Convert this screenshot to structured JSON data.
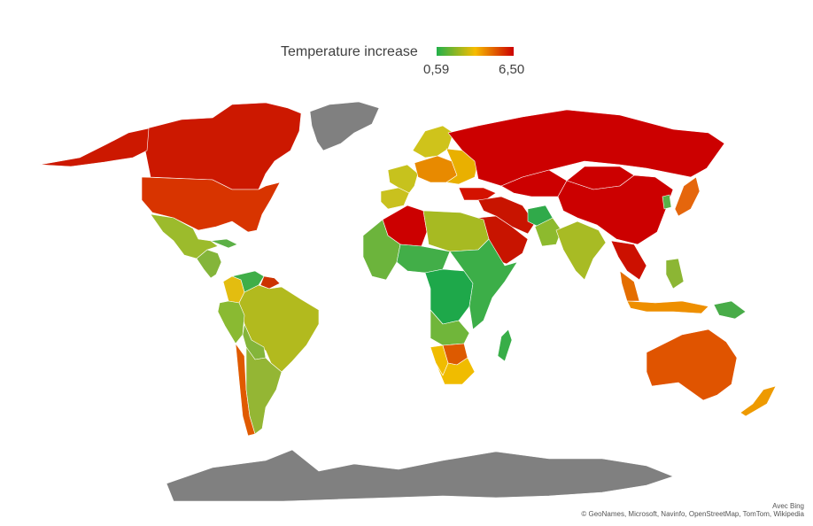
{
  "legend": {
    "title": "Temperature increase",
    "min_label": "0,59",
    "max_label": "6,50",
    "min_value": 0.59,
    "max_value": 6.5,
    "gradient": [
      "#22b04a",
      "#f6bc00",
      "#cc0000"
    ]
  },
  "colors": {
    "no_data": "#808080",
    "ocean": "#ffffff",
    "border": "#ffffff"
  },
  "regions": [
    {
      "name": "Canada",
      "color": "#cc1800"
    },
    {
      "name": "Alaska",
      "color": "#cc1800"
    },
    {
      "name": "Greenland",
      "color": "#808080"
    },
    {
      "name": "United States",
      "color": "#d83400"
    },
    {
      "name": "Mexico",
      "color": "#9cbb2c"
    },
    {
      "name": "Central America",
      "color": "#84b53a"
    },
    {
      "name": "Cuba",
      "color": "#5cb046"
    },
    {
      "name": "Venezuela",
      "color": "#3fae48"
    },
    {
      "name": "Colombia",
      "color": "#e3bd10"
    },
    {
      "name": "Guyana",
      "color": "#cc3300"
    },
    {
      "name": "Brazil",
      "color": "#b2ba1e"
    },
    {
      "name": "Peru",
      "color": "#8aba32"
    },
    {
      "name": "Bolivia",
      "color": "#84b53a"
    },
    {
      "name": "Chile",
      "color": "#e05a00"
    },
    {
      "name": "Argentina",
      "color": "#94b634"
    },
    {
      "name": "Scandinavia",
      "color": "#cfc31b"
    },
    {
      "name": "Western Europe",
      "color": "#c7c21d"
    },
    {
      "name": "Central Europe",
      "color": "#e88a00"
    },
    {
      "name": "Eastern Europe",
      "color": "#e9b000"
    },
    {
      "name": "Iberia",
      "color": "#c9c11e"
    },
    {
      "name": "Turkey",
      "color": "#d41200"
    },
    {
      "name": "Russia",
      "color": "#cc0000"
    },
    {
      "name": "Central Asia",
      "color": "#cc0000"
    },
    {
      "name": "Mongolia",
      "color": "#cc0000"
    },
    {
      "name": "China",
      "color": "#cc0000"
    },
    {
      "name": "Korea",
      "color": "#58b048"
    },
    {
      "name": "Japan",
      "color": "#e5660c"
    },
    {
      "name": "Middle East",
      "color": "#c81400"
    },
    {
      "name": "Arabian Peninsula",
      "color": "#c81400"
    },
    {
      "name": "Afghanistan",
      "color": "#30aa4a"
    },
    {
      "name": "Pakistan",
      "color": "#8dba2e"
    },
    {
      "name": "India",
      "color": "#a8bb24"
    },
    {
      "name": "Southeast Asia",
      "color": "#cc1000"
    },
    {
      "name": "Malaysia",
      "color": "#e46d00"
    },
    {
      "name": "Indonesia",
      "color": "#ee8f00"
    },
    {
      "name": "Philippines",
      "color": "#8cb634"
    },
    {
      "name": "Papua New Guinea",
      "color": "#48ac48"
    },
    {
      "name": "Australia",
      "color": "#e05400"
    },
    {
      "name": "New Zealand",
      "color": "#ee9a00"
    },
    {
      "name": "Algeria",
      "color": "#cc0000"
    },
    {
      "name": "North Africa",
      "color": "#a7ba22"
    },
    {
      "name": "West Africa",
      "color": "#6cb43c"
    },
    {
      "name": "Sahel",
      "color": "#42ae48"
    },
    {
      "name": "Central Africa",
      "color": "#1ea84a"
    },
    {
      "name": "East Africa",
      "color": "#3cae48"
    },
    {
      "name": "Angola",
      "color": "#70b63a"
    },
    {
      "name": "Namibia",
      "color": "#f0bc00"
    },
    {
      "name": "Botswana",
      "color": "#dd5a00"
    },
    {
      "name": "South Africa",
      "color": "#f0bc00"
    },
    {
      "name": "Madagascar",
      "color": "#38ae48"
    },
    {
      "name": "Antarctica",
      "color": "#808080"
    }
  ],
  "attribution": {
    "line1": "Avec Bing",
    "line2": "© GeoNames, Microsoft, Navinfo, OpenStreetMap, TomTom, Wikipedia"
  }
}
